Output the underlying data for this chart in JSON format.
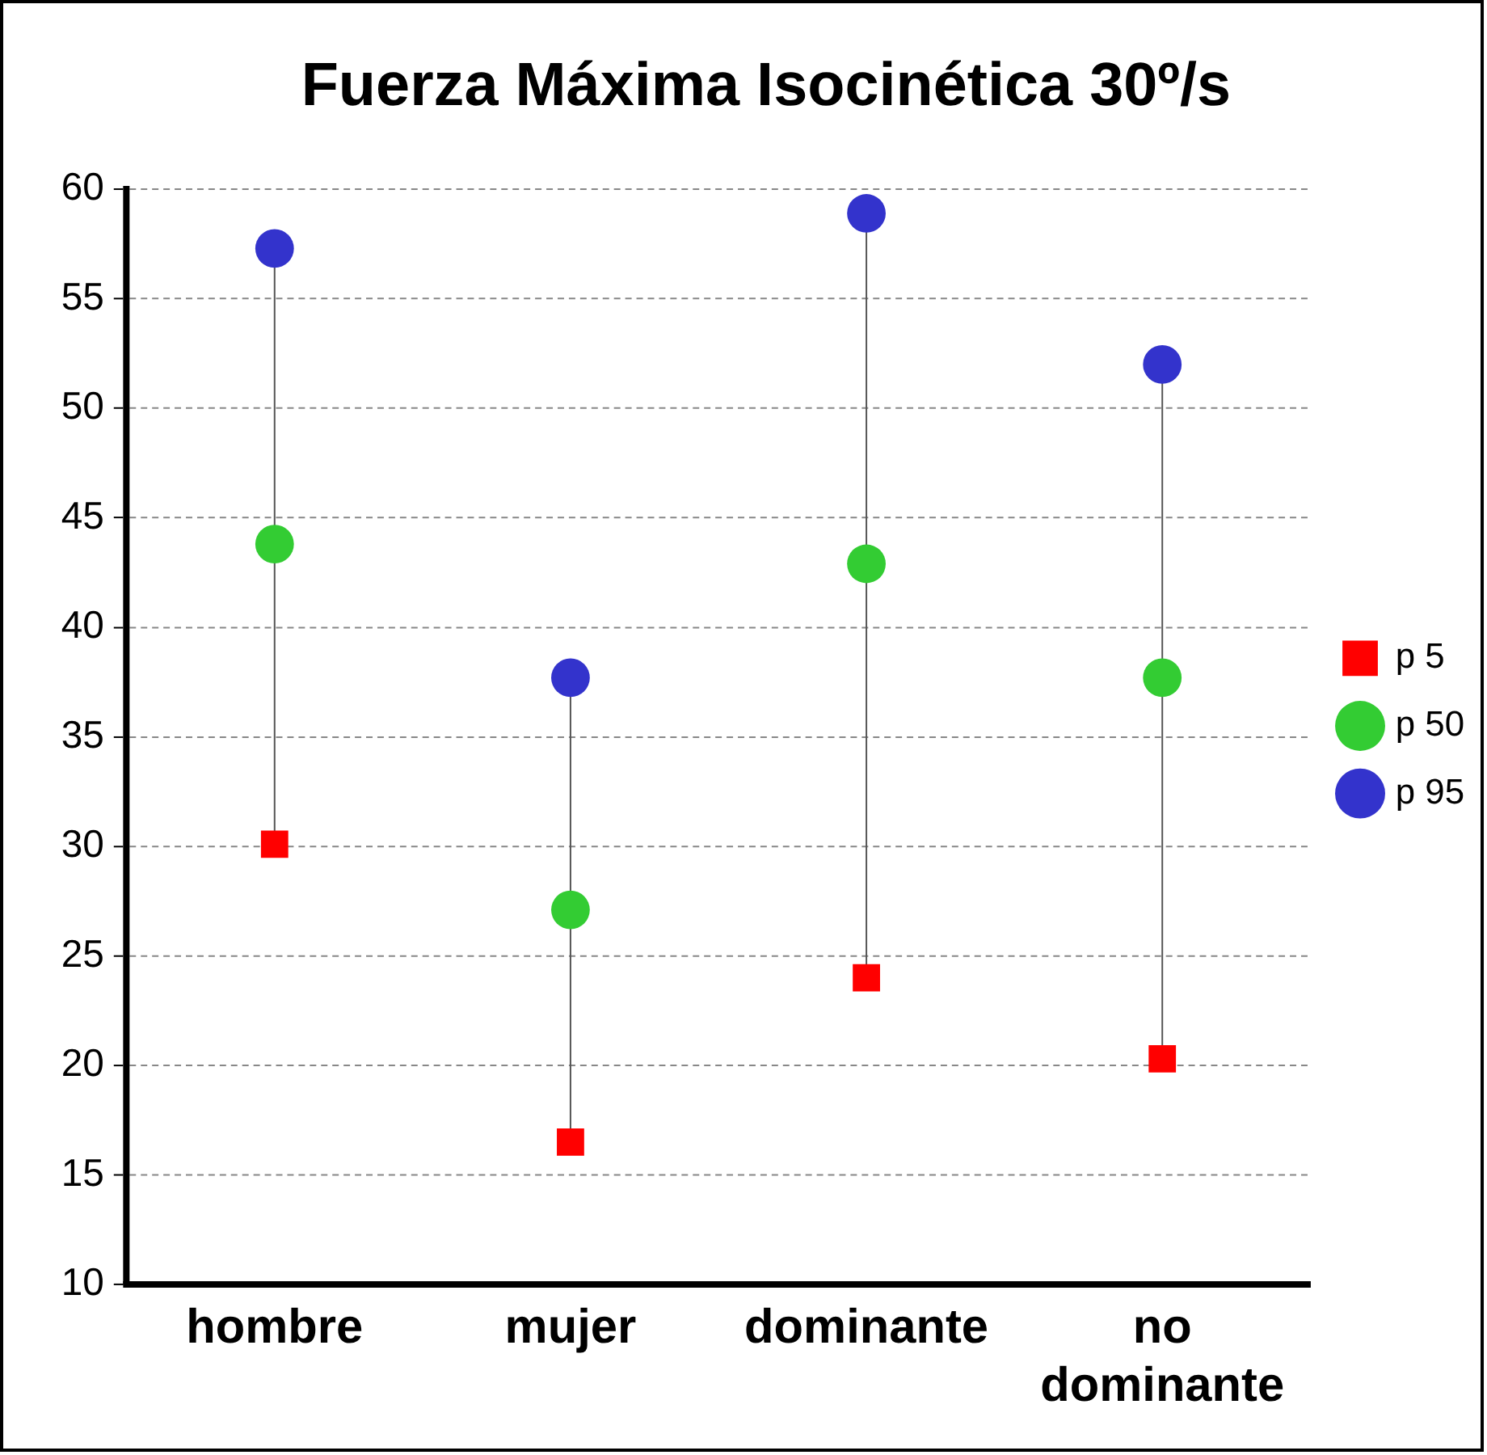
{
  "chart_data": {
    "type": "scatter",
    "title": "Fuerza Máxima Isocinética 30º/s",
    "categories": [
      "hombre",
      "mujer",
      "dominante",
      "no dominante"
    ],
    "series": [
      {
        "name": "p 5",
        "color": "#ff0000",
        "marker": "square",
        "values": [
          30.1,
          16.5,
          24.0,
          20.3
        ]
      },
      {
        "name": "p 50",
        "color": "#33cc33",
        "marker": "circle",
        "values": [
          43.8,
          27.1,
          42.9,
          37.7
        ]
      },
      {
        "name": "p 95",
        "color": "#3333cc",
        "marker": "circle",
        "values": [
          57.3,
          37.7,
          58.9,
          52.0
        ]
      }
    ],
    "ylim": [
      10,
      60
    ],
    "yticks": [
      10,
      15,
      20,
      25,
      30,
      35,
      40,
      45,
      50,
      55,
      60
    ],
    "grid": "y",
    "legend": "right"
  }
}
